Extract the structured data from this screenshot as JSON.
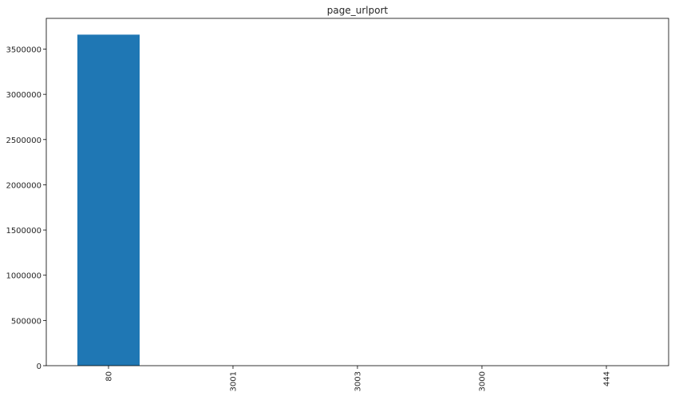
{
  "chart_data": {
    "type": "bar",
    "title": "page_urlport",
    "xlabel": "",
    "ylabel": "",
    "categories": [
      "80",
      "3001",
      "3003",
      "3000",
      "444"
    ],
    "values": [
      3660000,
      3,
      2,
      1,
      1
    ],
    "ylim": [
      0,
      3840000
    ],
    "yticks": [
      0,
      500000,
      1000000,
      1500000,
      2000000,
      2500000,
      3000000,
      3500000
    ],
    "ytick_labels": [
      "0",
      "500000",
      "1000000",
      "1500000",
      "2000000",
      "2500000",
      "3000000",
      "3500000"
    ],
    "bar_color": "#1f77b4",
    "grid": false,
    "legend": "none"
  }
}
